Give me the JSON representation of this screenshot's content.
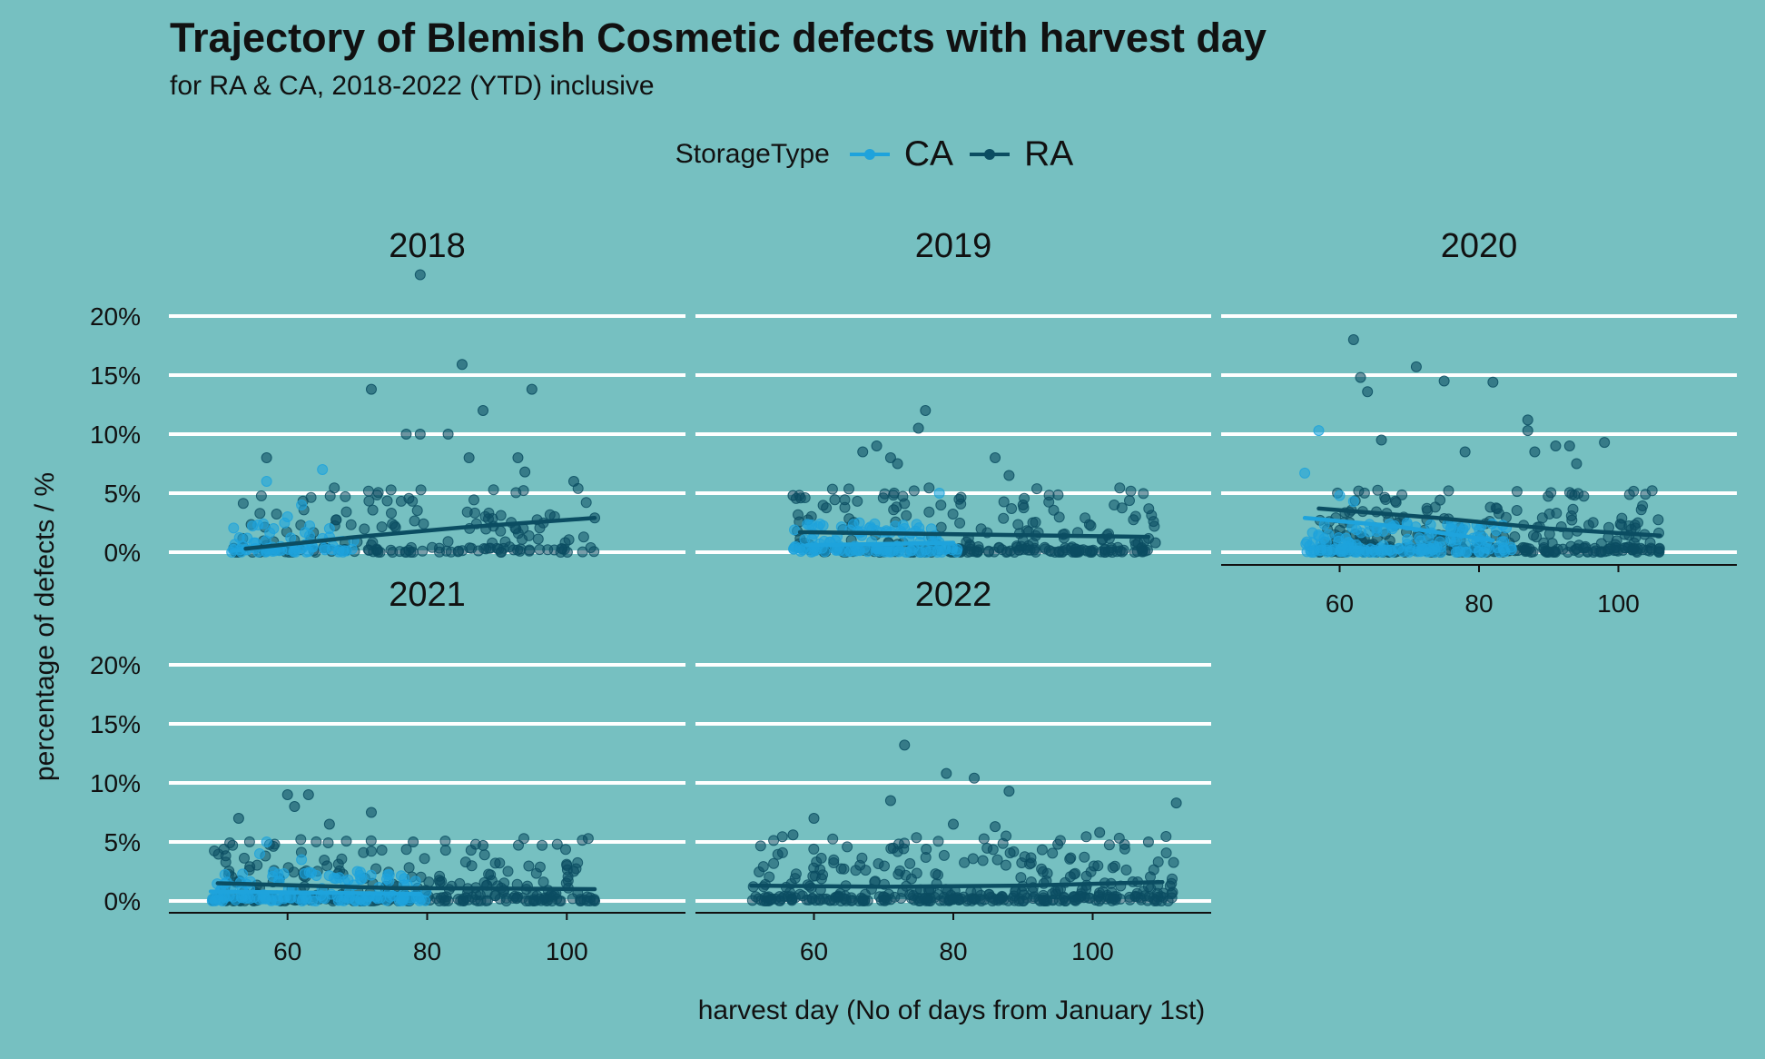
{
  "chart_data": {
    "type": "scatter",
    "title": "Trajectory of Blemish Cosmetic defects with harvest day",
    "subtitle": "for RA & CA, 2018-2022 (YTD) inclusive",
    "xlabel": "harvest day (No of days from January 1st)",
    "ylabel": "percentage of defects / %",
    "xlim": [
      43,
      117
    ],
    "ylim": [
      0,
      20
    ],
    "x_ticks": [
      60,
      80,
      100
    ],
    "y_ticks": [
      0,
      5,
      10,
      15,
      20
    ],
    "y_tick_labels": [
      "0%",
      "5%",
      "10%",
      "15%",
      "20%"
    ],
    "grid": "horizontal major",
    "legend": {
      "title": "StorageType",
      "placement": "top",
      "entries": [
        {
          "name": "CA",
          "color": "#1ea3dc"
        },
        {
          "name": "RA",
          "color": "#0b4d62"
        }
      ]
    },
    "panels": [
      {
        "label": "2018",
        "trend": {
          "CA": [
            [
              52,
              0.1
            ],
            [
              68,
              1.2
            ]
          ],
          "RA": [
            [
              54,
              0.3
            ],
            [
              70,
              1.3
            ],
            [
              85,
              2.1
            ],
            [
              104,
              2.9
            ]
          ]
        },
        "highlights": {
          "CA": [
            [
              57,
              6.0
            ],
            [
              65,
              7.0
            ],
            [
              52,
              0.0
            ],
            [
              58,
              2.0
            ],
            [
              60,
              3.0
            ],
            [
              62,
              4.0
            ],
            [
              66,
              2.0
            ]
          ],
          "RA": [
            [
              79,
              23.5
            ],
            [
              85,
              15.9
            ],
            [
              95,
              13.8
            ],
            [
              72,
              13.8
            ],
            [
              88,
              12.0
            ],
            [
              77,
              10.0
            ],
            [
              79,
              10.0
            ],
            [
              83,
              10.0
            ],
            [
              86,
              8.0
            ],
            [
              93,
              8.0
            ],
            [
              57,
              8.0
            ],
            [
              94,
              6.8
            ],
            [
              101,
              6.0
            ],
            [
              104,
              2.9
            ]
          ]
        }
      },
      {
        "label": "2019",
        "trend": {
          "CA": [
            [
              59,
              0.6
            ],
            [
              80,
              0.8
            ]
          ],
          "RA": [
            [
              58,
              1.7
            ],
            [
              83,
              1.5
            ],
            [
              108,
              1.3
            ]
          ]
        },
        "highlights": {
          "CA": [
            [
              73,
              2.0
            ],
            [
              78,
              5.0
            ]
          ],
          "RA": [
            [
              76,
              12.0
            ],
            [
              75,
              10.5
            ],
            [
              67,
              8.5
            ],
            [
              69,
              9.0
            ],
            [
              71,
              8.0
            ],
            [
              72,
              7.5
            ],
            [
              86,
              8.0
            ],
            [
              88,
              6.5
            ],
            [
              57,
              4.8
            ],
            [
              90,
              4.0
            ],
            [
              109,
              0.8
            ]
          ]
        }
      },
      {
        "label": "2020",
        "trend": {
          "CA": [
            [
              55,
              2.9
            ],
            [
              68,
              2.2
            ],
            [
              82,
              1.0
            ]
          ],
          "RA": [
            [
              57,
              3.7
            ],
            [
              74,
              2.9
            ],
            [
              90,
              2.0
            ],
            [
              106,
              1.4
            ]
          ]
        },
        "highlights": {
          "CA": [
            [
              57,
              10.3
            ],
            [
              55,
              6.7
            ],
            [
              60,
              4.8
            ],
            [
              62,
              4.3
            ],
            [
              56,
              0.0
            ]
          ],
          "RA": [
            [
              62,
              18.0
            ],
            [
              63,
              14.8
            ],
            [
              64,
              13.6
            ],
            [
              71,
              15.7
            ],
            [
              75,
              14.5
            ],
            [
              82,
              14.4
            ],
            [
              87,
              11.2
            ],
            [
              87,
              10.3
            ],
            [
              98,
              9.3
            ],
            [
              91,
              9.0
            ],
            [
              93,
              9.0
            ],
            [
              66,
              9.5
            ],
            [
              78,
              8.5
            ],
            [
              94,
              7.5
            ],
            [
              88,
              8.5
            ]
          ]
        }
      },
      {
        "label": "2021",
        "trend": {
          "CA": [
            [
              49,
              0.8
            ],
            [
              79,
              0.6
            ]
          ],
          "RA": [
            [
              50,
              1.5
            ],
            [
              75,
              1.1
            ],
            [
              104,
              1.0
            ]
          ]
        },
        "highlights": {
          "CA": [
            [
              56,
              4.0
            ],
            [
              57,
              5.0
            ],
            [
              62,
              3.5
            ],
            [
              70,
              2.5
            ]
          ],
          "RA": [
            [
              60,
              9.0
            ],
            [
              63,
              9.0
            ],
            [
              61,
              8.0
            ],
            [
              72,
              7.5
            ],
            [
              53,
              7.0
            ],
            [
              66,
              6.5
            ],
            [
              78,
              5.0
            ],
            [
              88,
              4.7
            ],
            [
              100,
              3.0
            ],
            [
              101,
              2.5
            ],
            [
              104,
              0.0
            ]
          ]
        }
      },
      {
        "label": "2022",
        "trend": {
          "CA": [],
          "RA": [
            [
              51,
              1.3
            ],
            [
              70,
              1.2
            ],
            [
              90,
              1.3
            ],
            [
              110,
              1.6
            ]
          ]
        },
        "highlights": {
          "CA": [],
          "RA": [
            [
              73,
              13.2
            ],
            [
              79,
              10.8
            ],
            [
              83,
              10.4
            ],
            [
              71,
              8.5
            ],
            [
              88,
              9.3
            ],
            [
              112,
              8.3
            ],
            [
              60,
              7.0
            ],
            [
              86,
              6.3
            ],
            [
              57,
              5.6
            ],
            [
              80,
              6.5
            ],
            [
              95,
              4.8
            ],
            [
              108,
              5.0
            ],
            [
              101,
              5.8
            ]
          ]
        }
      }
    ]
  }
}
